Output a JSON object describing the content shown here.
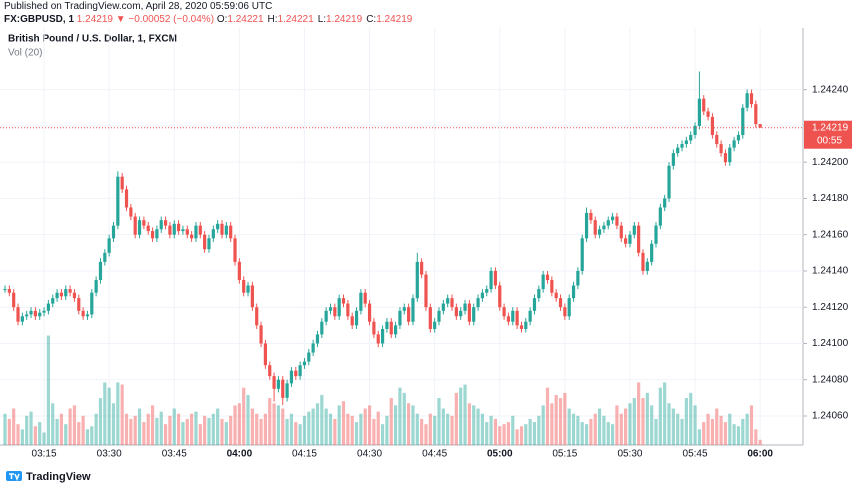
{
  "header": {
    "published": "Published on TradingView.com, April 28, 2020 05:59:06 UTC",
    "symbol": "FX:GBPUSD, 1",
    "price": "1.24219",
    "change": "▼ −0.00052 (−0.04%)",
    "ohlc": [
      [
        "O:",
        "1.24221"
      ],
      [
        "H:",
        "1.24221"
      ],
      [
        "L:",
        "1.24219"
      ],
      [
        "C:",
        "1.24219"
      ]
    ]
  },
  "footer": {
    "brand": "TradingView"
  },
  "chart_data": {
    "type": "candlestick",
    "title": "British Pound / U.S. Dollar, 1, FXCM",
    "volume_label": "Vol (20)",
    "up_color": "#26a69a",
    "down_color": "#ef5350",
    "grid": true,
    "categories": [
      null,
      null,
      null,
      null,
      null,
      null,
      null,
      null,
      null,
      "03:15",
      null,
      null,
      null,
      null,
      null,
      null,
      null,
      null,
      null,
      null,
      null,
      null,
      null,
      null,
      "03:30",
      null,
      null,
      null,
      null,
      null,
      null,
      null,
      null,
      null,
      null,
      null,
      null,
      null,
      null,
      "03:45",
      null,
      null,
      null,
      null,
      null,
      null,
      null,
      null,
      null,
      null,
      null,
      null,
      null,
      null,
      "04:00",
      null,
      null,
      null,
      null,
      null,
      null,
      null,
      null,
      null,
      null,
      null,
      null,
      null,
      null,
      "04:15",
      null,
      null,
      null,
      null,
      null,
      null,
      null,
      null,
      null,
      null,
      null,
      null,
      null,
      null,
      "04:30",
      null,
      null,
      null,
      null,
      null,
      null,
      null,
      null,
      null,
      null,
      null,
      null,
      null,
      null,
      "04:45",
      null,
      null,
      null,
      null,
      null,
      null,
      null,
      null,
      null,
      null,
      null,
      null,
      null,
      null,
      "05:00",
      null,
      null,
      null,
      null,
      null,
      null,
      null,
      null,
      null,
      null,
      null,
      null,
      null,
      null,
      "05:15",
      null,
      null,
      null,
      null,
      null,
      null,
      null,
      null,
      null,
      null,
      null,
      null,
      null,
      null,
      "05:30",
      null,
      null,
      null,
      null,
      null,
      null,
      null,
      null,
      null,
      null,
      null,
      null,
      null,
      null,
      "05:45",
      null,
      null,
      null,
      null,
      null,
      null,
      null,
      null,
      null,
      null,
      null,
      null,
      null,
      null,
      "06:00"
    ],
    "open": [
      1.2413,
      1.2413,
      1.24128,
      1.2412,
      1.24112,
      1.24115,
      1.24116,
      1.24118,
      1.24115,
      1.24117,
      1.24118,
      1.24122,
      1.24125,
      1.24128,
      1.24126,
      1.2413,
      1.24128,
      1.24125,
      1.24118,
      1.24115,
      1.24116,
      1.24128,
      1.24135,
      1.24145,
      1.2415,
      1.24158,
      1.24165,
      1.24192,
      1.24185,
      1.24175,
      1.2417,
      1.2416,
      1.24168,
      1.24165,
      1.24162,
      1.24158,
      1.24163,
      1.24168,
      1.24165,
      1.2416,
      1.24166,
      1.24162,
      1.24163,
      1.2416,
      1.24158,
      1.24165,
      1.2416,
      1.24152,
      1.24158,
      1.24163,
      1.24166,
      1.2416,
      1.24165,
      1.24158,
      1.24145,
      1.24135,
      1.24128,
      1.24132,
      1.2412,
      1.2411,
      1.241,
      1.24088,
      1.24082,
      1.24075,
      1.2408,
      1.2407,
      1.24078,
      1.24085,
      1.24082,
      1.24088,
      1.2409,
      1.24095,
      1.241,
      1.24105,
      1.24112,
      1.24118,
      1.2412,
      1.24115,
      1.24125,
      1.24122,
      1.24115,
      1.2411,
      1.24118,
      1.24128,
      1.24122,
      1.24112,
      1.24105,
      1.241,
      1.24108,
      1.24112,
      1.24105,
      1.2411,
      1.24118,
      1.2412,
      1.24112,
      1.24125,
      1.24145,
      1.24138,
      1.2412,
      1.24108,
      1.24112,
      1.24118,
      1.24122,
      1.24125,
      1.2412,
      1.24115,
      1.24118,
      1.24122,
      1.24112,
      1.2412,
      1.24125,
      1.24128,
      1.2413,
      1.2414,
      1.24132,
      1.2412,
      1.24115,
      1.24112,
      1.24118,
      1.2411,
      1.24108,
      1.24112,
      1.24118,
      1.24125,
      1.2413,
      1.24138,
      1.24135,
      1.24128,
      1.24125,
      1.2412,
      1.24115,
      1.24125,
      1.24132,
      1.2414,
      1.24158,
      1.24172,
      1.24168,
      1.2416,
      1.24163,
      1.24165,
      1.24168,
      1.2417,
      1.24165,
      1.24158,
      1.24155,
      1.2416,
      1.24165,
      1.2415,
      1.2414,
      1.24145,
      1.24155,
      1.24165,
      1.24175,
      1.2418,
      1.24198,
      1.24205,
      1.24208,
      1.2421,
      1.24212,
      1.24215,
      1.2422,
      1.24235,
      1.24228,
      1.24225,
      1.24215,
      1.2421,
      1.24205,
      1.242,
      1.24208,
      1.24212,
      1.24215,
      1.2423,
      1.24238,
      1.24232,
      1.24221
    ],
    "high": [
      1.24132,
      1.24132,
      1.2413,
      1.24122,
      1.24117,
      1.24118,
      1.2412,
      1.2412,
      1.24119,
      1.2412,
      1.24124,
      1.24127,
      1.2413,
      1.2413,
      1.24132,
      1.24132,
      1.2413,
      1.24127,
      1.2412,
      1.24118,
      1.2413,
      1.24137,
      1.24147,
      1.24152,
      1.2416,
      1.24167,
      1.24195,
      1.24194,
      1.24187,
      1.24177,
      1.24172,
      1.2417,
      1.2417,
      1.24167,
      1.24164,
      1.24165,
      1.2417,
      1.2417,
      1.24167,
      1.24168,
      1.24168,
      1.24165,
      1.24165,
      1.24162,
      1.24167,
      1.24167,
      1.24162,
      1.2416,
      1.24165,
      1.24168,
      1.24168,
      1.24167,
      1.24167,
      1.2416,
      1.24147,
      1.24137,
      1.24134,
      1.24134,
      1.24122,
      1.24112,
      1.24102,
      1.2409,
      1.24084,
      1.24082,
      1.24082,
      1.2408,
      1.24087,
      1.24087,
      1.2409,
      1.24092,
      1.24097,
      1.24102,
      1.24107,
      1.24114,
      1.2412,
      1.24122,
      1.24122,
      1.24127,
      1.24127,
      1.24124,
      1.24117,
      1.2412,
      1.2413,
      1.2413,
      1.24124,
      1.24114,
      1.24107,
      1.2411,
      1.24114,
      1.24114,
      1.24112,
      1.2412,
      1.24122,
      1.24122,
      1.24127,
      1.2415,
      1.24147,
      1.2414,
      1.24122,
      1.24114,
      1.2412,
      1.24124,
      1.24127,
      1.24127,
      1.24122,
      1.2412,
      1.24124,
      1.24124,
      1.24122,
      1.24127,
      1.2413,
      1.24132,
      1.24142,
      1.24142,
      1.24134,
      1.24122,
      1.24117,
      1.2412,
      1.2412,
      1.24112,
      1.24114,
      1.2412,
      1.24127,
      1.24132,
      1.2414,
      1.2414,
      1.24137,
      1.2413,
      1.24127,
      1.24122,
      1.24127,
      1.24134,
      1.24142,
      1.2416,
      1.24175,
      1.24174,
      1.2417,
      1.24165,
      1.24167,
      1.2417,
      1.24172,
      1.24172,
      1.24167,
      1.2416,
      1.24162,
      1.24167,
      1.24167,
      1.24152,
      1.24147,
      1.24157,
      1.24167,
      1.24177,
      1.24182,
      1.242,
      1.24207,
      1.2421,
      1.24212,
      1.24214,
      1.24217,
      1.24222,
      1.2425,
      1.24237,
      1.2423,
      1.24227,
      1.24217,
      1.24212,
      1.24207,
      1.2421,
      1.24214,
      1.24217,
      1.24232,
      1.2424,
      1.2424,
      1.24234,
      1.24221
    ],
    "low": [
      1.24128,
      1.24126,
      1.24118,
      1.2411,
      1.2411,
      1.24113,
      1.24114,
      1.24113,
      1.24113,
      1.24115,
      1.24116,
      1.2412,
      1.24123,
      1.24124,
      1.24124,
      1.24126,
      1.24123,
      1.24116,
      1.24113,
      1.24113,
      1.24114,
      1.24126,
      1.24133,
      1.24143,
      1.24148,
      1.24156,
      1.24163,
      1.24183,
      1.24173,
      1.24168,
      1.24158,
      1.24158,
      1.24163,
      1.2416,
      1.24156,
      1.24156,
      1.24161,
      1.24163,
      1.24158,
      1.24158,
      1.2416,
      1.2416,
      1.24158,
      1.24156,
      1.24156,
      1.24158,
      1.2415,
      1.2415,
      1.24156,
      1.24161,
      1.24158,
      1.24158,
      1.24156,
      1.24143,
      1.24133,
      1.24126,
      1.24126,
      1.24118,
      1.24108,
      1.24098,
      1.24086,
      1.2408,
      1.24068,
      1.24073,
      1.24066,
      1.24068,
      1.24076,
      1.2408,
      1.2408,
      1.24086,
      1.24088,
      1.24093,
      1.24098,
      1.24103,
      1.2411,
      1.24116,
      1.24113,
      1.24113,
      1.2412,
      1.24113,
      1.24108,
      1.24108,
      1.24116,
      1.2412,
      1.2411,
      1.24103,
      1.24098,
      1.24098,
      1.24106,
      1.24103,
      1.24103,
      1.24108,
      1.24116,
      1.2411,
      1.2411,
      1.24123,
      1.24136,
      1.24118,
      1.24106,
      1.24106,
      1.2411,
      1.24116,
      1.2412,
      1.24118,
      1.24113,
      1.24113,
      1.24116,
      1.2411,
      1.2411,
      1.24118,
      1.24123,
      1.24126,
      1.24128,
      1.2413,
      1.24118,
      1.24113,
      1.2411,
      1.2411,
      1.24108,
      1.24106,
      1.24106,
      1.2411,
      1.24116,
      1.24123,
      1.24128,
      1.24133,
      1.24126,
      1.24123,
      1.24118,
      1.24113,
      1.24113,
      1.24123,
      1.2413,
      1.24138,
      1.24156,
      1.24166,
      1.24158,
      1.24158,
      1.24161,
      1.24163,
      1.24166,
      1.24163,
      1.24156,
      1.24153,
      1.24153,
      1.24158,
      1.24148,
      1.24138,
      1.24138,
      1.24143,
      1.24153,
      1.24163,
      1.24173,
      1.24178,
      1.24196,
      1.24203,
      1.24206,
      1.24208,
      1.2421,
      1.24213,
      1.24218,
      1.24226,
      1.24223,
      1.24213,
      1.24208,
      1.24203,
      1.24198,
      1.24198,
      1.24206,
      1.2421,
      1.24213,
      1.24228,
      1.2423,
      1.24219,
      1.24219
    ],
    "close": [
      1.2413,
      1.24128,
      1.2412,
      1.24112,
      1.24115,
      1.24116,
      1.24118,
      1.24115,
      1.24117,
      1.24118,
      1.24122,
      1.24125,
      1.24128,
      1.24126,
      1.2413,
      1.24128,
      1.24125,
      1.24118,
      1.24115,
      1.24116,
      1.24128,
      1.24135,
      1.24145,
      1.2415,
      1.24158,
      1.24165,
      1.24192,
      1.24185,
      1.24175,
      1.2417,
      1.2416,
      1.24168,
      1.24165,
      1.24162,
      1.24158,
      1.24163,
      1.24168,
      1.24165,
      1.2416,
      1.24166,
      1.24162,
      1.24163,
      1.2416,
      1.24158,
      1.24165,
      1.2416,
      1.24152,
      1.24158,
      1.24163,
      1.24166,
      1.2416,
      1.24165,
      1.24158,
      1.24145,
      1.24135,
      1.24128,
      1.24132,
      1.2412,
      1.2411,
      1.241,
      1.24088,
      1.24082,
      1.24075,
      1.2408,
      1.2407,
      1.24078,
      1.24085,
      1.24082,
      1.24088,
      1.2409,
      1.24095,
      1.241,
      1.24105,
      1.24112,
      1.24118,
      1.2412,
      1.24115,
      1.24125,
      1.24122,
      1.24115,
      1.2411,
      1.24118,
      1.24128,
      1.24122,
      1.24112,
      1.24105,
      1.241,
      1.24108,
      1.24112,
      1.24105,
      1.2411,
      1.24118,
      1.2412,
      1.24112,
      1.24125,
      1.24145,
      1.24138,
      1.2412,
      1.24108,
      1.24112,
      1.24118,
      1.24122,
      1.24125,
      1.2412,
      1.24115,
      1.24118,
      1.24122,
      1.24112,
      1.2412,
      1.24125,
      1.24128,
      1.2413,
      1.2414,
      1.24132,
      1.2412,
      1.24115,
      1.24112,
      1.24118,
      1.2411,
      1.24108,
      1.24112,
      1.24118,
      1.24125,
      1.2413,
      1.24138,
      1.24135,
      1.24128,
      1.24125,
      1.2412,
      1.24115,
      1.24125,
      1.24132,
      1.2414,
      1.24158,
      1.24172,
      1.24168,
      1.2416,
      1.24163,
      1.24165,
      1.24168,
      1.2417,
      1.24165,
      1.24158,
      1.24155,
      1.2416,
      1.24165,
      1.2415,
      1.2414,
      1.24145,
      1.24155,
      1.24165,
      1.24175,
      1.2418,
      1.24198,
      1.24205,
      1.24208,
      1.2421,
      1.24212,
      1.24215,
      1.2422,
      1.24235,
      1.24228,
      1.24225,
      1.24215,
      1.2421,
      1.24205,
      1.242,
      1.24208,
      1.24212,
      1.24215,
      1.2423,
      1.24238,
      1.24232,
      1.24221,
      1.24219
    ],
    "volume": [
      30,
      25,
      35,
      20,
      15,
      28,
      32,
      18,
      22,
      12,
      105,
      40,
      25,
      30,
      20,
      35,
      38,
      22,
      28,
      15,
      18,
      30,
      45,
      60,
      55,
      40,
      60,
      58,
      30,
      25,
      28,
      35,
      22,
      30,
      38,
      26,
      32,
      20,
      28,
      35,
      30,
      22,
      25,
      30,
      32,
      20,
      28,
      26,
      30,
      35,
      25,
      22,
      28,
      38,
      40,
      55,
      48,
      35,
      30,
      25,
      30,
      45,
      40,
      38,
      35,
      25,
      30,
      22,
      20,
      28,
      32,
      35,
      40,
      48,
      35,
      30,
      25,
      38,
      42,
      30,
      28,
      22,
      30,
      35,
      38,
      25,
      32,
      20,
      28,
      45,
      38,
      55,
      50,
      40,
      38,
      30,
      25,
      20,
      30,
      28,
      45,
      35,
      30,
      28,
      50,
      55,
      58,
      40,
      38,
      35,
      30,
      22,
      28,
      25,
      18,
      20,
      22,
      28,
      15,
      18,
      20,
      25,
      22,
      28,
      38,
      55,
      40,
      48,
      45,
      50,
      35,
      30,
      28,
      22,
      20,
      25,
      30,
      35,
      28,
      22,
      20,
      38,
      30,
      35,
      40,
      45,
      60,
      45,
      50,
      38,
      25,
      55,
      60,
      40,
      35,
      30,
      25,
      45,
      50,
      38,
      15,
      22,
      30,
      25,
      35,
      28,
      22,
      30,
      20,
      18,
      25,
      30,
      38,
      15,
      5
    ],
    "vlim": [
      0,
      400
    ],
    "ylim": [
      1.24044,
      1.24274
    ],
    "yticks": [
      {
        "value": 1.2406,
        "label": "1.24060"
      },
      {
        "value": 1.2408,
        "label": "1.24080"
      },
      {
        "value": 1.241,
        "label": "1.24100"
      },
      {
        "value": 1.2412,
        "label": "1.24120"
      },
      {
        "value": 1.2414,
        "label": "1.24140"
      },
      {
        "value": 1.2416,
        "label": "1.24160"
      },
      {
        "value": 1.2418,
        "label": "1.24180"
      },
      {
        "value": 1.242,
        "label": "1.24200"
      },
      {
        "value": 1.2422,
        "label": "1.24220"
      },
      {
        "value": 1.2424,
        "label": "1.24240"
      }
    ],
    "last_price": {
      "value": 1.24219,
      "label": "1.24219"
    },
    "countdown": "00:55"
  }
}
